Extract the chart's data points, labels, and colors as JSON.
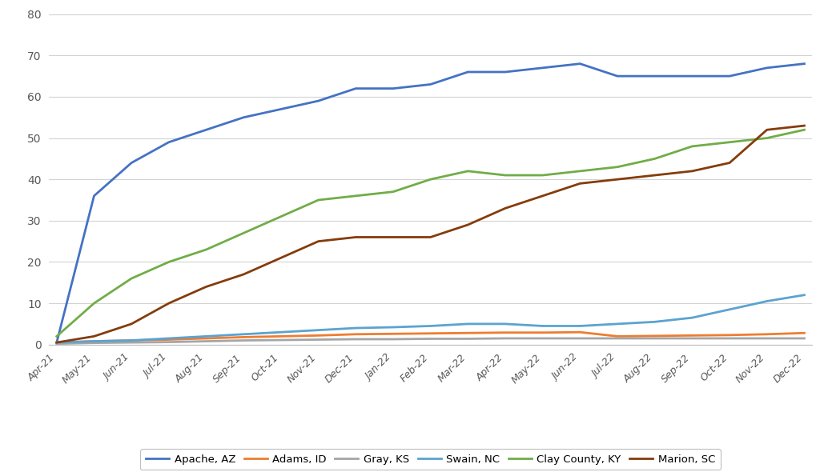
{
  "x_labels": [
    "Apr-21",
    "May-21",
    "Jun-21",
    "Jul-21",
    "Aug-21",
    "Sep-21",
    "Oct-21",
    "Nov-21",
    "Dec-21",
    "Jan-22",
    "Feb-22",
    "Mar-22",
    "Apr-22",
    "May-22",
    "Jun-22",
    "Jul-22",
    "Aug-22",
    "Sep-22",
    "Oct-22",
    "Nov-22",
    "Dec-22"
  ],
  "series": {
    "Apache, AZ": [
      0.5,
      36,
      44,
      49,
      52,
      55,
      57,
      59,
      62,
      62,
      63,
      66,
      66,
      67,
      68,
      65,
      65,
      65,
      65,
      67,
      68
    ],
    "Adams, ID": [
      0.5,
      0.8,
      1.0,
      1.2,
      1.5,
      1.8,
      2.0,
      2.2,
      2.5,
      2.6,
      2.7,
      2.8,
      2.9,
      2.9,
      3.0,
      2.0,
      2.1,
      2.2,
      2.3,
      2.5,
      2.8
    ],
    "Gray, KS": [
      0.2,
      0.4,
      0.5,
      0.6,
      0.8,
      1.0,
      1.1,
      1.2,
      1.3,
      1.3,
      1.4,
      1.4,
      1.5,
      1.5,
      1.5,
      1.5,
      1.5,
      1.5,
      1.5,
      1.5,
      1.5
    ],
    "Swain, NC": [
      0.5,
      0.8,
      1.0,
      1.5,
      2.0,
      2.5,
      3.0,
      3.5,
      4.0,
      4.2,
      4.5,
      5.0,
      5.0,
      4.5,
      4.5,
      5.0,
      5.5,
      6.5,
      8.5,
      10.5,
      12
    ],
    "Clay County, KY": [
      2,
      10,
      16,
      20,
      23,
      27,
      31,
      35,
      36,
      37,
      40,
      42,
      41,
      41,
      42,
      43,
      45,
      48,
      49,
      50,
      52
    ],
    "Marion, SC": [
      0.5,
      2,
      5,
      10,
      14,
      17,
      21,
      25,
      26,
      26,
      26,
      29,
      33,
      36,
      39,
      40,
      41,
      42,
      44,
      52,
      53
    ]
  },
  "colors": {
    "Apache, AZ": "#4472C4",
    "Adams, ID": "#ED7D31",
    "Gray, KS": "#A5A5A5",
    "Swain, NC": "#5BA3D0",
    "Clay County, KY": "#70AD47",
    "Marion, SC": "#843C0C"
  },
  "ylim": [
    0,
    80
  ],
  "yticks": [
    0,
    10,
    20,
    30,
    40,
    50,
    60,
    70,
    80
  ],
  "background_color": "#FFFFFF",
  "grid_color": "#D3D3D3",
  "legend_order": [
    "Apache, AZ",
    "Adams, ID",
    "Gray, KS",
    "Swain, NC",
    "Clay County, KY",
    "Marion, SC"
  ]
}
